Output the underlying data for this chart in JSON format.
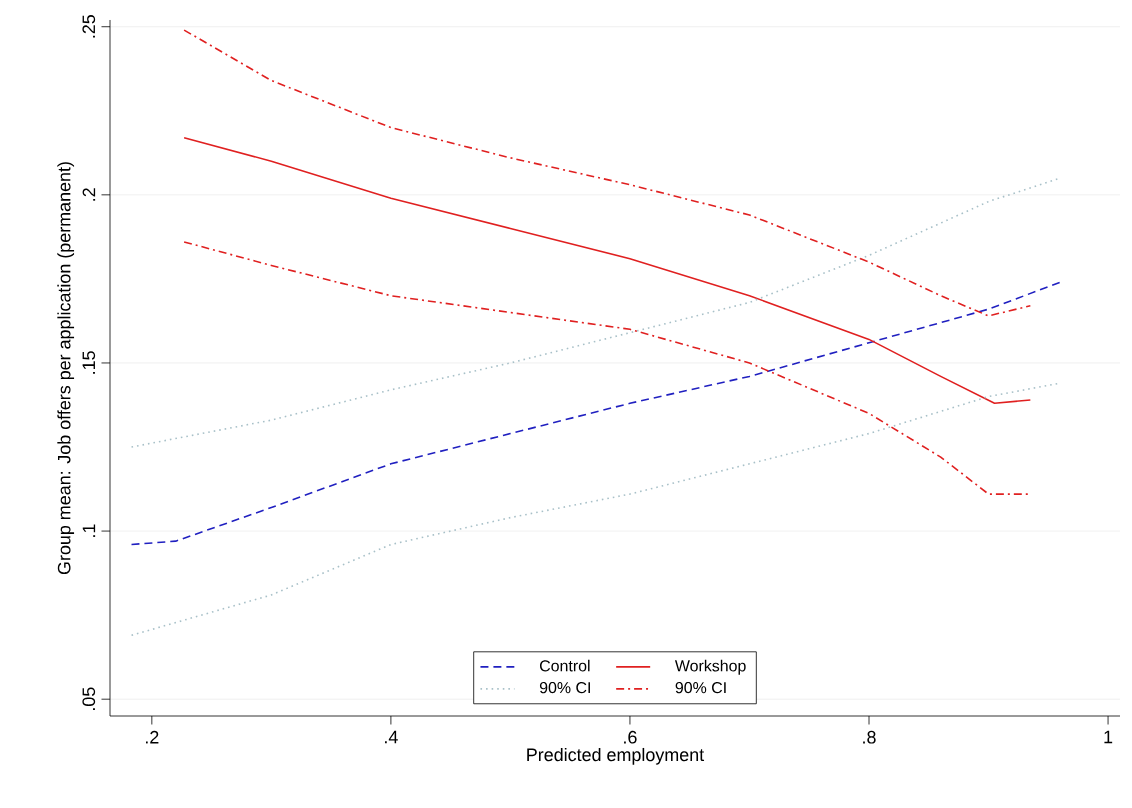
{
  "chart_data": {
    "type": "line",
    "xlabel": "Predicted employment",
    "ylabel": "Group mean: Job offers per application (permanent)",
    "xlim": [
      0.165,
      1.01
    ],
    "ylim": [
      0.045,
      0.252
    ],
    "xticks": [
      {
        "value": 0.2,
        "label": ".2"
      },
      {
        "value": 0.4,
        "label": ".4"
      },
      {
        "value": 0.6,
        "label": ".6"
      },
      {
        "value": 0.8,
        "label": ".8"
      },
      1
    ],
    "yticks": [
      {
        "value": 0.05,
        "label": ".05"
      },
      {
        "value": 0.1,
        "label": ".1"
      },
      {
        "value": 0.15,
        "label": ".15"
      },
      {
        "value": 0.2,
        "label": ".2"
      },
      {
        "value": 0.25,
        "label": ".25"
      }
    ],
    "grid": "y",
    "legend": "bottom",
    "series": [
      {
        "name": "Control",
        "color": "#2020c0",
        "line_style": "dashed",
        "x": [
          0.183,
          0.22,
          0.3,
          0.4,
          0.5,
          0.6,
          0.7,
          0.8,
          0.9,
          0.96
        ],
        "values": [
          0.096,
          0.097,
          0.107,
          0.12,
          0.129,
          0.138,
          0.146,
          0.156,
          0.166,
          0.174
        ]
      },
      {
        "name": "Workshop",
        "color": "#e02020",
        "line_style": "solid",
        "x": [
          0.227,
          0.3,
          0.4,
          0.5,
          0.6,
          0.7,
          0.8,
          0.86,
          0.905,
          0.935
        ],
        "values": [
          0.217,
          0.21,
          0.199,
          0.19,
          0.181,
          0.17,
          0.157,
          0.146,
          0.138,
          0.139
        ]
      },
      {
        "name": "90% CI",
        "color": "#a8c0c8",
        "line_style": "dotted",
        "x": [
          0.183,
          0.3,
          0.4,
          0.5,
          0.6,
          0.7,
          0.8,
          0.9,
          0.96
        ],
        "values": [
          0.125,
          0.133,
          0.142,
          0.15,
          0.159,
          0.168,
          0.182,
          0.198,
          0.205
        ]
      },
      {
        "name": "90% CI",
        "color": "#e02020",
        "line_style": "dashdot",
        "x": [
          0.227,
          0.3,
          0.4,
          0.5,
          0.6,
          0.7,
          0.8,
          0.86,
          0.9,
          0.935
        ],
        "values": [
          0.249,
          0.234,
          0.22,
          0.211,
          0.203,
          0.194,
          0.18,
          0.17,
          0.164,
          0.167
        ]
      },
      {
        "color": "#a8c0c8",
        "line_style": "dotted",
        "x": [
          0.183,
          0.3,
          0.4,
          0.5,
          0.6,
          0.7,
          0.8,
          0.9,
          0.96
        ],
        "values": [
          0.069,
          0.081,
          0.096,
          0.104,
          0.111,
          0.12,
          0.129,
          0.14,
          0.144
        ]
      },
      {
        "color": "#e02020",
        "line_style": "dashdot",
        "x": [
          0.227,
          0.3,
          0.4,
          0.5,
          0.6,
          0.7,
          0.8,
          0.86,
          0.9,
          0.935
        ],
        "values": [
          0.186,
          0.179,
          0.17,
          0.165,
          0.16,
          0.15,
          0.135,
          0.122,
          0.111,
          0.111
        ]
      }
    ]
  }
}
